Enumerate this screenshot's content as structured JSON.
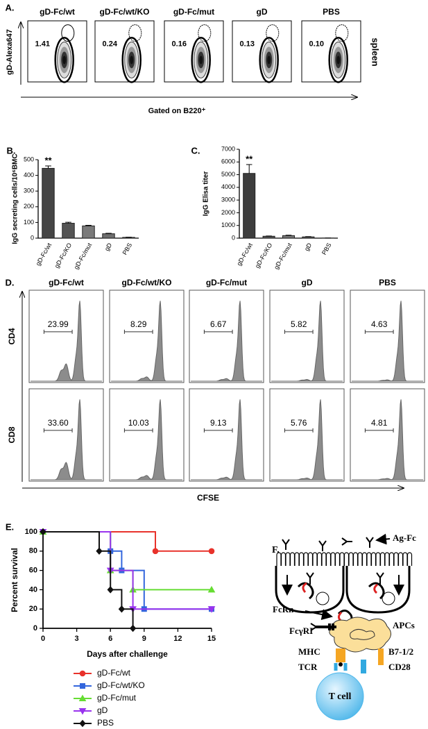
{
  "panel_a": {
    "label": "A.",
    "columns": [
      "gD-Fc/wt",
      "gD-Fc/wt/KO",
      "gD-Fc/mut",
      "gD",
      "PBS"
    ],
    "values": [
      "1.41",
      "0.24",
      "0.16",
      "0.13",
      "0.10"
    ],
    "y_label": "gD-Alexa647",
    "side_label": "spleen",
    "x_label": "Gated on B220⁺"
  },
  "chart_data": [
    {
      "type": "bar",
      "panel_label": "B.",
      "y_label": "IgG secreting cells/10⁶BMC",
      "categories": [
        "gD-Fc/wt",
        "gD-Fc/KO",
        "gD-Fc/mut",
        "gD",
        "PBS"
      ],
      "values": [
        445,
        95,
        78,
        28,
        5
      ],
      "errors": [
        15,
        6,
        4,
        3,
        1
      ],
      "colors": [
        "#454545",
        "#555555",
        "#7a7a7a",
        "#6e6e6e",
        "#999999"
      ],
      "ylim": [
        0,
        500
      ],
      "yticks": [
        0,
        100,
        200,
        300,
        400,
        500
      ],
      "significance": "**"
    },
    {
      "type": "bar",
      "panel_label": "C.",
      "y_label": "IgG Elisa titer",
      "categories": [
        "gD-Fc/wt",
        "gD-Fc/KO",
        "gD-Fc/mut",
        "gD",
        "PBS"
      ],
      "values": [
        5100,
        150,
        200,
        100,
        10
      ],
      "errors": [
        700,
        20,
        30,
        20,
        0
      ],
      "colors": [
        "#3d3d3d",
        "#555555",
        "#777777",
        "#666666",
        "#999999"
      ],
      "ylim": [
        0,
        7000
      ],
      "yticks": [
        0,
        1000,
        2000,
        3000,
        4000,
        5000,
        6000,
        7000
      ],
      "significance": "**"
    },
    {
      "type": "line",
      "panel_label": "E.",
      "y_label": "Percent survival",
      "x_label": "Days after challenge",
      "xlim": [
        0,
        15
      ],
      "xticks": [
        0,
        3,
        6,
        9,
        12,
        15
      ],
      "ylim": [
        0,
        100
      ],
      "yticks": [
        0,
        20,
        40,
        60,
        80,
        100
      ],
      "series": [
        {
          "name": "gD-Fc/wt",
          "color": "#e8322b",
          "marker": "circle",
          "x": [
            0,
            10,
            15
          ],
          "values": [
            100,
            80,
            80
          ]
        },
        {
          "name": "gD-Fc/wt/KO",
          "color": "#3366dd",
          "marker": "square",
          "x": [
            0,
            6,
            7,
            9,
            15
          ],
          "values": [
            100,
            80,
            60,
            20,
            20
          ]
        },
        {
          "name": "gD-Fc/mut",
          "color": "#66dd33",
          "marker": "triangle-up",
          "x": [
            0,
            6,
            8,
            15
          ],
          "values": [
            100,
            60,
            40,
            40
          ]
        },
        {
          "name": "gD",
          "color": "#9933ee",
          "marker": "triangle-down",
          "x": [
            0,
            6,
            8,
            15
          ],
          "values": [
            100,
            60,
            20,
            20
          ]
        },
        {
          "name": "PBS",
          "color": "#111111",
          "marker": "diamond",
          "x": [
            0,
            5,
            6,
            7,
            8
          ],
          "values": [
            100,
            80,
            40,
            20,
            0
          ]
        }
      ]
    }
  ],
  "panel_d": {
    "label": "D.",
    "columns": [
      "gD-Fc/wt",
      "gD-Fc/wt/KO",
      "gD-Fc/mut",
      "gD",
      "PBS"
    ],
    "rows": [
      {
        "name": "CD4",
        "values": [
          "23.99",
          "8.29",
          "6.67",
          "5.82",
          "4.63"
        ]
      },
      {
        "name": "CD8",
        "values": [
          "33.60",
          "10.03",
          "9.13",
          "5.76",
          "4.81"
        ]
      }
    ],
    "x_label": "CFSE"
  },
  "panel_f": {
    "label": "F.",
    "ag_fc": "Ag-Fc",
    "fcrn": "FcRn",
    "fcgri": "FcγRI",
    "apcs": "APCs",
    "mhc": "MHC",
    "tcr": "TCR",
    "b7": "B7-1/2",
    "cd28": "CD28",
    "t_cell": "T cell"
  }
}
